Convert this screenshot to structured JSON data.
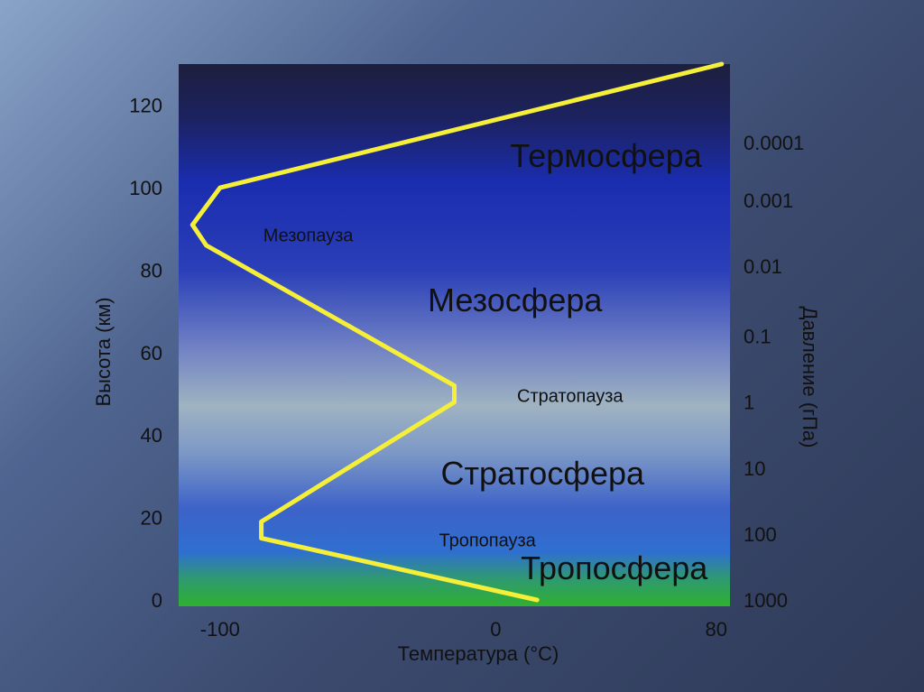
{
  "chart_data": {
    "type": "line",
    "xlabel": "Температура (°C)",
    "ylabel": "Высота (км)",
    "ylabel_right": "Давление (гПа)",
    "xlim": [
      -115,
      85
    ],
    "ylim": [
      0,
      130
    ],
    "x_ticks": [
      {
        "value": -100,
        "label": "-100"
      },
      {
        "value": 0,
        "label": "0"
      },
      {
        "value": 80,
        "label": "80"
      }
    ],
    "y_ticks": [
      {
        "value": 0,
        "label": "0"
      },
      {
        "value": 20,
        "label": "20"
      },
      {
        "value": 40,
        "label": "40"
      },
      {
        "value": 60,
        "label": "60"
      },
      {
        "value": 80,
        "label": "80"
      },
      {
        "value": 100,
        "label": "100"
      },
      {
        "value": 120,
        "label": "120"
      }
    ],
    "pressure_ticks": [
      {
        "altitude": 0,
        "label": "1000"
      },
      {
        "altitude": 16,
        "label": "100"
      },
      {
        "altitude": 32,
        "label": "10"
      },
      {
        "altitude": 48,
        "label": "1"
      },
      {
        "altitude": 64,
        "label": "0.1"
      },
      {
        "altitude": 81,
        "label": "0.01"
      },
      {
        "altitude": 97,
        "label": "0.001"
      },
      {
        "altitude": 111,
        "label": "0.0001"
      }
    ],
    "series": [
      {
        "color": "#f5ef3a",
        "points": [
          {
            "x": 15,
            "y": 0
          },
          {
            "x": -85,
            "y": 15
          },
          {
            "x": -85,
            "y": 19
          },
          {
            "x": -15,
            "y": 48
          },
          {
            "x": -15,
            "y": 52
          },
          {
            "x": -105,
            "y": 86
          },
          {
            "x": -110,
            "y": 91
          },
          {
            "x": -100,
            "y": 100
          },
          {
            "x": 82,
            "y": 130
          }
        ]
      }
    ],
    "annotations": [
      {
        "text": "Термосфера",
        "x": 40,
        "y": 105,
        "size": "large"
      },
      {
        "text": "Мезопауза",
        "x": -68,
        "y": 87,
        "size": "small"
      },
      {
        "text": "Мезосфера",
        "x": 7,
        "y": 70,
        "size": "large"
      },
      {
        "text": "Стратопауза",
        "x": 27,
        "y": 48,
        "size": "small"
      },
      {
        "text": "Стратосфера",
        "x": 17,
        "y": 28,
        "size": "large"
      },
      {
        "text": "Тропопауза",
        "x": -3,
        "y": 13,
        "size": "small"
      },
      {
        "text": "Тропосфера",
        "x": 43,
        "y": 5,
        "size": "large"
      }
    ]
  }
}
